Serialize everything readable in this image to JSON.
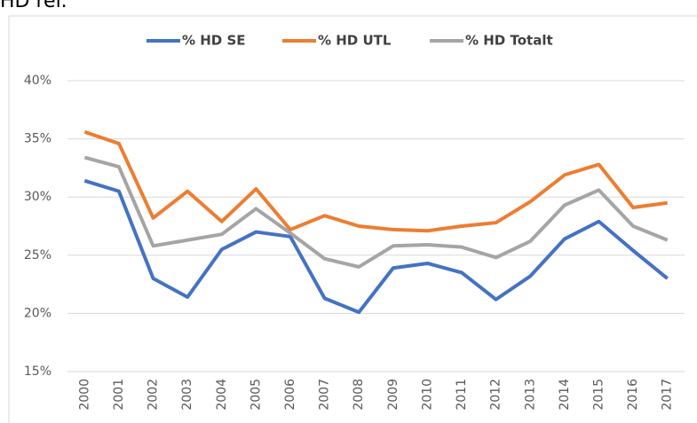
{
  "note": "HD rel.",
  "chart_data": {
    "type": "line",
    "categories": [
      "2000",
      "2001",
      "2002",
      "2003",
      "2004",
      "2005",
      "2006",
      "2007",
      "2008",
      "2009",
      "2010",
      "2011",
      "2012",
      "2013",
      "2014",
      "2015",
      "2016",
      "2017"
    ],
    "series": [
      {
        "name": "% HD SE",
        "color": "#4472c4",
        "values": [
          31.4,
          30.5,
          23.0,
          21.4,
          25.5,
          27.0,
          26.6,
          21.3,
          20.1,
          23.9,
          24.3,
          23.5,
          21.2,
          23.2,
          26.4,
          27.9,
          25.4,
          23.0
        ]
      },
      {
        "name": "% HD UTL",
        "color": "#ed7d31",
        "values": [
          35.6,
          34.6,
          28.2,
          30.5,
          27.9,
          30.7,
          27.2,
          28.4,
          27.5,
          27.2,
          27.1,
          27.5,
          27.8,
          29.6,
          31.9,
          32.8,
          29.1,
          29.5
        ]
      },
      {
        "name": "% HD Totalt",
        "color": "#a5a5a5",
        "values": [
          33.4,
          32.6,
          25.8,
          26.3,
          26.8,
          29.0,
          26.9,
          24.7,
          24.0,
          25.8,
          25.9,
          25.7,
          24.8,
          26.2,
          29.3,
          30.6,
          27.5,
          26.3
        ]
      }
    ],
    "ylim": [
      15,
      40
    ],
    "yticks": [
      {
        "value": 15,
        "label": "15%"
      },
      {
        "value": 20,
        "label": "20%"
      },
      {
        "value": 25,
        "label": "25%"
      },
      {
        "value": 30,
        "label": "30%"
      },
      {
        "value": 35,
        "label": "35%"
      },
      {
        "value": 40,
        "label": "40%"
      }
    ],
    "grid": true,
    "legend": "top"
  }
}
